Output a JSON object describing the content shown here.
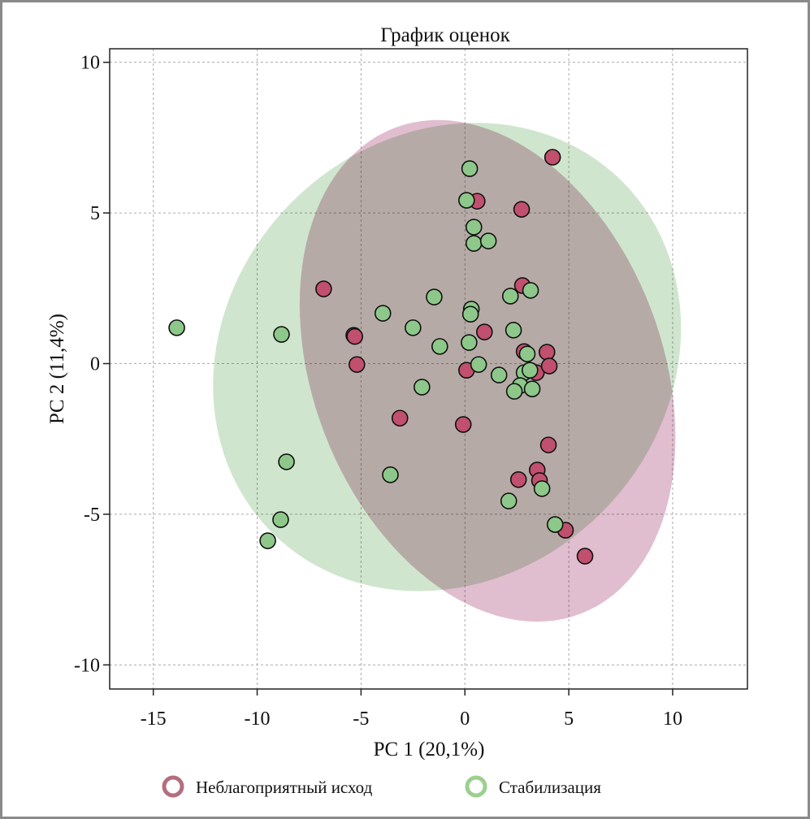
{
  "chart_data": {
    "type": "scatter",
    "title": "График оценок",
    "xlabel": "PC 1 (20,1%)",
    "ylabel": "PC 2 (11,4%)",
    "xlim": [
      -17.1,
      13.6
    ],
    "ylim": [
      -10.8,
      10.45
    ],
    "xticks": [
      -15,
      -10,
      -5,
      0,
      5,
      10
    ],
    "yticks": [
      10,
      5,
      0,
      -5,
      -10
    ],
    "grid": true,
    "legend_position": "bottom",
    "series": [
      {
        "name": "Неблагоприятный исход",
        "color": "#c0506e",
        "legend_color": "#b46e80",
        "ellipse_color": "#c27ba0",
        "ellipse": {
          "center": [
            1.09,
            -0.24
          ],
          "axis_a": [
            4.49,
            -8.06
          ],
          "axis_b": [
            -7.85,
            -2.08
          ]
        },
        "points": [
          [
            4.22,
            6.85
          ],
          [
            0.59,
            5.39
          ],
          [
            2.73,
            5.12
          ],
          [
            -6.8,
            2.48
          ],
          [
            2.77,
            2.59
          ],
          [
            -5.35,
            0.94
          ],
          [
            -5.3,
            0.9
          ],
          [
            0.94,
            1.05
          ],
          [
            -5.2,
            -0.03
          ],
          [
            2.85,
            0.4
          ],
          [
            3.95,
            0.38
          ],
          [
            3.44,
            -0.3
          ],
          [
            4.06,
            -0.08
          ],
          [
            0.08,
            -0.22
          ],
          [
            -3.13,
            -1.81
          ],
          [
            -0.08,
            -2.02
          ],
          [
            4.02,
            -2.7
          ],
          [
            3.48,
            -3.53
          ],
          [
            3.59,
            -3.88
          ],
          [
            2.58,
            -3.85
          ],
          [
            4.84,
            -5.53
          ],
          [
            5.78,
            -6.39
          ]
        ]
      },
      {
        "name": "Стабилизация",
        "color": "#8dc88a",
        "legend_color": "#9ccf8f",
        "ellipse_color": "#8fc28a",
        "ellipse": {
          "center": [
            -0.86,
            0.22
          ],
          "axis_a": [
            8.44,
            5.82
          ],
          "axis_b": [
            7.46,
            -5.15
          ]
        },
        "points": [
          [
            0.23,
            6.47
          ],
          [
            0.08,
            5.42
          ],
          [
            0.43,
            4.53
          ],
          [
            0.43,
            3.99
          ],
          [
            1.13,
            4.07
          ],
          [
            3.16,
            2.43
          ],
          [
            2.19,
            2.24
          ],
          [
            -1.48,
            2.21
          ],
          [
            0.31,
            1.81
          ],
          [
            0.27,
            1.64
          ],
          [
            -3.95,
            1.67
          ],
          [
            -13.87,
            1.19
          ],
          [
            -8.83,
            0.97
          ],
          [
            -2.5,
            1.19
          ],
          [
            2.34,
            1.11
          ],
          [
            -1.21,
            0.57
          ],
          [
            0.2,
            0.7
          ],
          [
            3.0,
            0.32
          ],
          [
            0.66,
            -0.03
          ],
          [
            1.64,
            -0.38
          ],
          [
            2.85,
            -0.3
          ],
          [
            3.13,
            -0.22
          ],
          [
            2.66,
            -0.73
          ],
          [
            2.38,
            -0.92
          ],
          [
            3.24,
            -0.84
          ],
          [
            -2.07,
            -0.78
          ],
          [
            -8.59,
            -3.26
          ],
          [
            -3.59,
            -3.69
          ],
          [
            3.71,
            -4.15
          ],
          [
            2.11,
            -4.56
          ],
          [
            -8.87,
            -5.18
          ],
          [
            4.34,
            -5.34
          ],
          [
            -9.49,
            -5.88
          ]
        ]
      }
    ]
  }
}
